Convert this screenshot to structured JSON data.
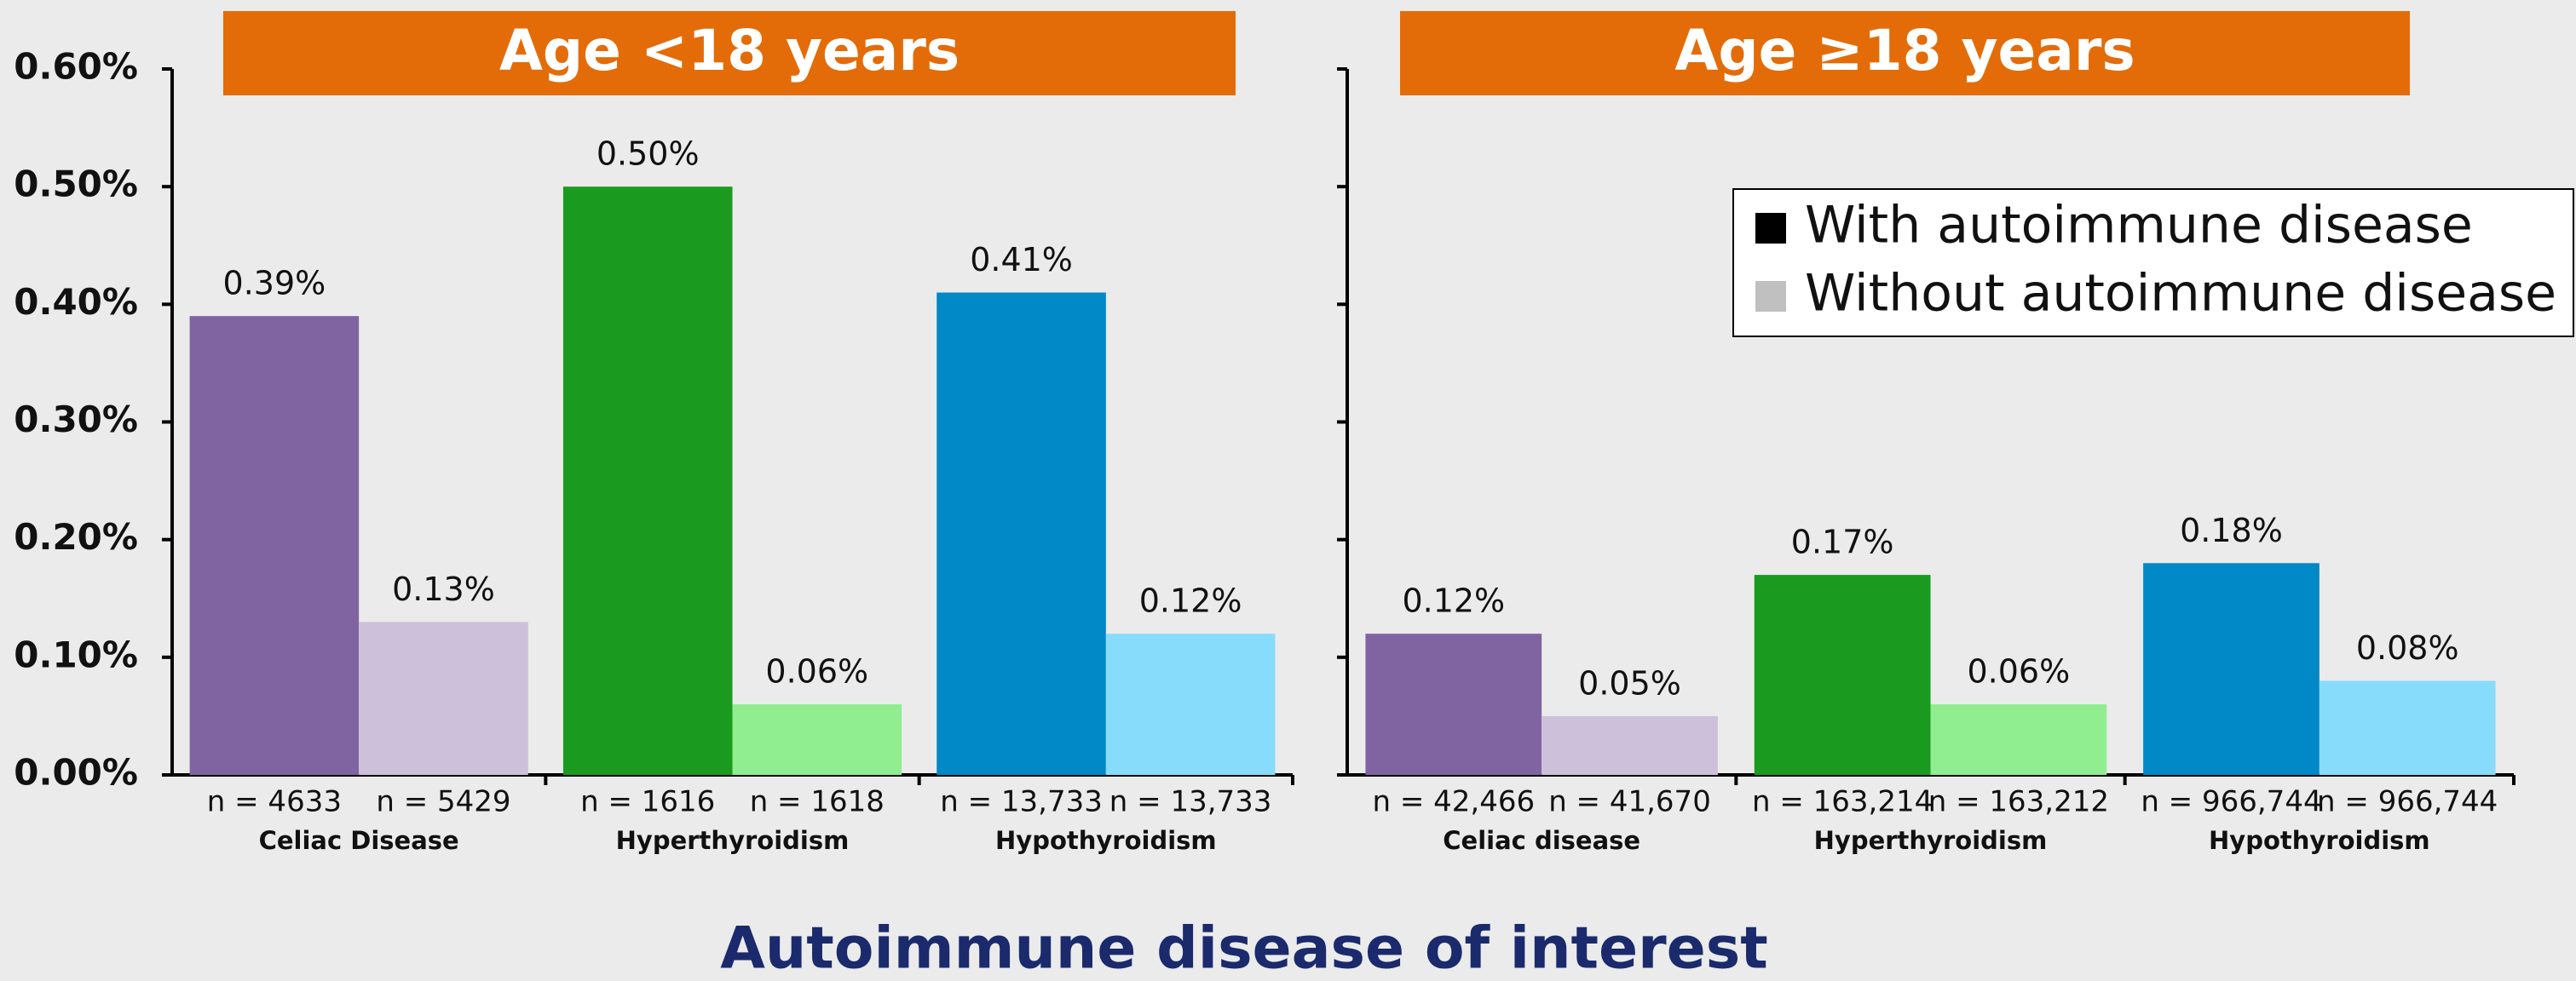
{
  "xlabel": "Autoimmune disease of interest",
  "chart_data": [
    {
      "type": "bar",
      "title": "Age <18 years",
      "categories": [
        "Celiac Disease",
        "Hyperthyroidism",
        "Hypothyroidism"
      ],
      "series": [
        {
          "name": "With autoimmune disease",
          "color": "#000000",
          "colors": [
            "#8064a2",
            "#1a9a1f",
            "#0088c7"
          ],
          "values": [
            0.39,
            0.5,
            0.41
          ],
          "value_labels": [
            "0.39%",
            "0.50%",
            "0.41%"
          ],
          "n_labels": [
            "n = 4633",
            "n = 1616",
            "n = 13,733"
          ]
        },
        {
          "name": "Without autoimmune disease",
          "color": "#c0c0c0",
          "colors": [
            "#ccc0da",
            "#90ee90",
            "#87dcfb"
          ],
          "values": [
            0.13,
            0.06,
            0.12
          ],
          "value_labels": [
            "0.13%",
            "0.06%",
            "0.12%"
          ],
          "n_labels": [
            "n = 5429",
            "n = 1618",
            "n = 13,733"
          ]
        }
      ],
      "ylim": [
        0,
        0.6
      ],
      "yticks": [
        {
          "value": 0,
          "label": "0.00%"
        },
        {
          "value": 0.1,
          "label": "0.10%"
        },
        {
          "value": 0.2,
          "label": "0.20%"
        },
        {
          "value": 0.3,
          "label": "0.30%"
        },
        {
          "value": 0.4,
          "label": "0.40%"
        },
        {
          "value": 0.5,
          "label": "0.50%"
        },
        {
          "value": 0.6,
          "label": "0.60%"
        }
      ]
    },
    {
      "type": "bar",
      "title": "Age ≥18 years",
      "categories": [
        "Celiac disease",
        "Hyperthyroidism",
        "Hypothyroidism"
      ],
      "series": [
        {
          "name": "With autoimmune disease",
          "color": "#000000",
          "colors": [
            "#8064a2",
            "#1a9a1f",
            "#0088c7"
          ],
          "values": [
            0.12,
            0.17,
            0.18
          ],
          "value_labels": [
            "0.12%",
            "0.17%",
            "0.18%"
          ],
          "n_labels": [
            "n = 42,466",
            "n = 163,214",
            "n = 966,744"
          ]
        },
        {
          "name": "Without autoimmune disease",
          "color": "#c0c0c0",
          "colors": [
            "#ccc0da",
            "#90ee90",
            "#87dcfb"
          ],
          "values": [
            0.05,
            0.06,
            0.08
          ],
          "value_labels": [
            "0.05%",
            "0.06%",
            "0.08%"
          ],
          "n_labels": [
            "n = 41,670",
            "n = 163,212",
            "n = 966,744"
          ]
        }
      ],
      "ylim": [
        0,
        0.6
      ],
      "yticks": [
        0,
        0.1,
        0.2,
        0.3,
        0.4,
        0.5,
        0.6
      ],
      "ytick_labels": false,
      "legend": "upper right"
    }
  ]
}
